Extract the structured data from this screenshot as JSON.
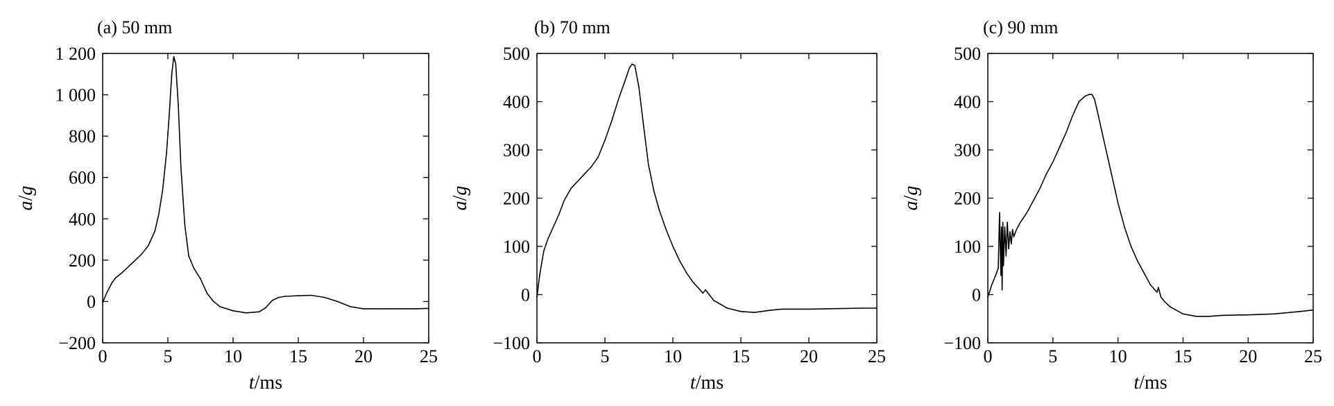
{
  "chart_data": [
    {
      "type": "line",
      "title": "(a) 50 mm",
      "xlabel_italic": "t",
      "xlabel_unit": "/ms",
      "ylabel_italic_a": "a",
      "ylabel_sep": "/",
      "ylabel_italic_b": "g",
      "xlim": [
        0,
        25
      ],
      "ylim": [
        -200,
        1200
      ],
      "xticks": [
        0,
        5,
        10,
        15,
        20,
        25
      ],
      "xtick_labels": [
        "0",
        "5",
        "10",
        "15",
        "20",
        "25"
      ],
      "yticks": [
        -200,
        0,
        200,
        400,
        600,
        800,
        1000,
        1200
      ],
      "ytick_labels": [
        "−200",
        "0",
        "200",
        "400",
        "600",
        "800",
        "1 000",
        "1 200"
      ],
      "grid": false,
      "series": [
        {
          "x": [
            0,
            0.3,
            0.7,
            1.0,
            1.5,
            2.0,
            2.5,
            3.0,
            3.5,
            4.0,
            4.3,
            4.6,
            4.9,
            5.1,
            5.3,
            5.45,
            5.6,
            5.8,
            6.0,
            6.3,
            6.6,
            7.0,
            7.5,
            8.0,
            8.5,
            9.0,
            10.0,
            11.0,
            12.0,
            12.5,
            13.0,
            13.5,
            14.0,
            15.0,
            16.0,
            17.0,
            18.0,
            19.0,
            20.0,
            21.0,
            22.0,
            23.0,
            24.0,
            25.0
          ],
          "y": [
            -5,
            40,
            90,
            115,
            140,
            170,
            200,
            230,
            270,
            340,
            420,
            540,
            720,
            900,
            1100,
            1185,
            1150,
            950,
            650,
            370,
            220,
            160,
            110,
            40,
            0,
            -25,
            -45,
            -55,
            -50,
            -30,
            5,
            20,
            25,
            28,
            30,
            20,
            0,
            -25,
            -35,
            -35,
            -35,
            -35,
            -35,
            -33
          ]
        }
      ]
    },
    {
      "type": "line",
      "title": "(b) 70 mm",
      "xlabel_italic": "t",
      "xlabel_unit": "/ms",
      "ylabel_italic_a": "a",
      "ylabel_sep": "/",
      "ylabel_italic_b": "g",
      "xlim": [
        0,
        25
      ],
      "ylim": [
        -100,
        500
      ],
      "xticks": [
        0,
        5,
        10,
        15,
        20,
        25
      ],
      "xtick_labels": [
        "0",
        "5",
        "10",
        "15",
        "20",
        "25"
      ],
      "yticks": [
        -100,
        0,
        100,
        200,
        300,
        400,
        500
      ],
      "ytick_labels": [
        "−100",
        "0",
        "100",
        "200",
        "300",
        "400",
        "500"
      ],
      "grid": false,
      "series": [
        {
          "x": [
            0,
            0.2,
            0.5,
            0.8,
            1.2,
            1.6,
            2.0,
            2.5,
            3.0,
            3.5,
            4.0,
            4.5,
            5.0,
            5.5,
            6.0,
            6.5,
            6.8,
            7.0,
            7.2,
            7.5,
            7.8,
            8.2,
            8.6,
            9.0,
            9.5,
            10.0,
            10.5,
            11.0,
            11.5,
            12.0,
            12.2,
            12.4,
            13.0,
            13.5,
            14.0,
            15.0,
            16.0,
            17.0,
            18.0,
            20.0,
            22.0,
            24.0,
            25.0
          ],
          "y": [
            -5,
            40,
            90,
            115,
            140,
            165,
            195,
            220,
            235,
            250,
            265,
            285,
            320,
            360,
            405,
            445,
            470,
            478,
            475,
            430,
            360,
            270,
            215,
            175,
            135,
            100,
            70,
            45,
            25,
            10,
            3,
            10,
            -12,
            -20,
            -28,
            -35,
            -37,
            -33,
            -30,
            -30,
            -29,
            -28,
            -28
          ]
        }
      ]
    },
    {
      "type": "line",
      "title": "(c) 90 mm",
      "xlabel_italic": "t",
      "xlabel_unit": "/ms",
      "ylabel_italic_a": "a",
      "ylabel_sep": "/",
      "ylabel_italic_b": "g",
      "xlim": [
        0,
        25
      ],
      "ylim": [
        -100,
        500
      ],
      "xticks": [
        0,
        5,
        10,
        15,
        20,
        25
      ],
      "xtick_labels": [
        "0",
        "5",
        "10",
        "15",
        "20",
        "25"
      ],
      "yticks": [
        -100,
        0,
        100,
        200,
        300,
        400,
        500
      ],
      "ytick_labels": [
        "−100",
        "0",
        "100",
        "200",
        "300",
        "400",
        "500"
      ],
      "grid": false,
      "series": [
        {
          "x": [
            0,
            0.3,
            0.6,
            0.8,
            0.9,
            1.0,
            1.05,
            1.1,
            1.15,
            1.2,
            1.3,
            1.4,
            1.5,
            1.6,
            1.7,
            1.8,
            1.9,
            2.0,
            2.2,
            2.5,
            3.0,
            3.5,
            4.0,
            4.5,
            5.0,
            5.5,
            6.0,
            6.5,
            7.0,
            7.5,
            7.8,
            8.0,
            8.2,
            8.5,
            9.0,
            9.5,
            10.0,
            10.5,
            11.0,
            11.5,
            12.0,
            12.5,
            13.0,
            13.1,
            13.3,
            13.6,
            14.0,
            15.0,
            16.0,
            17.0,
            18.0,
            20.0,
            22.0,
            24.0,
            25.0
          ],
          "y": [
            -5,
            20,
            40,
            55,
            170,
            40,
            140,
            10,
            150,
            60,
            140,
            80,
            150,
            95,
            130,
            105,
            135,
            120,
            135,
            150,
            170,
            195,
            220,
            250,
            275,
            305,
            335,
            370,
            400,
            412,
            415,
            415,
            405,
            370,
            310,
            250,
            190,
            140,
            100,
            70,
            45,
            20,
            5,
            15,
            -5,
            -15,
            -25,
            -40,
            -45,
            -45,
            -43,
            -42,
            -40,
            -35,
            -32
          ]
        }
      ]
    }
  ]
}
